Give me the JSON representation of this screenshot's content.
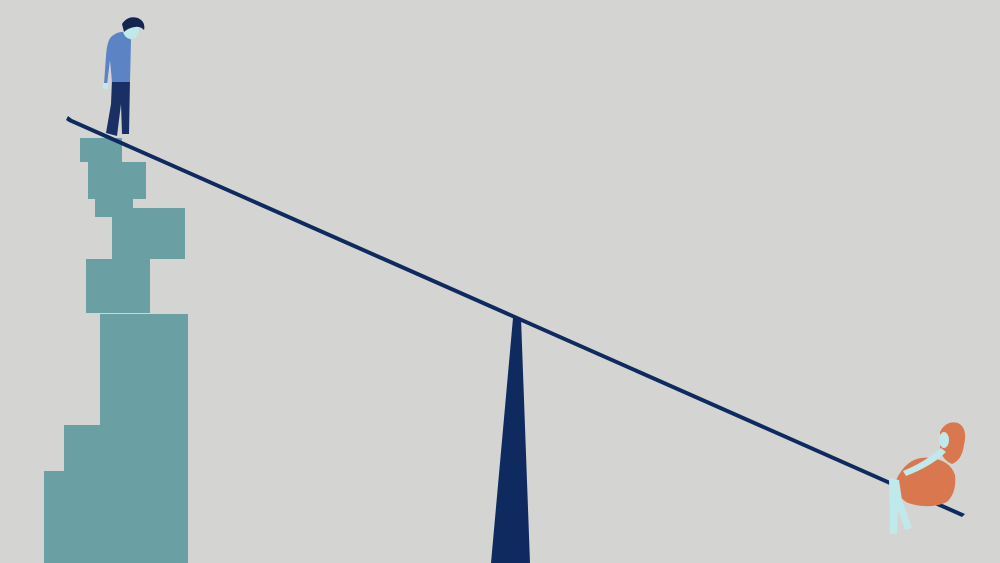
{
  "scene": {
    "colors": {
      "background": "#d4d5d3",
      "blocks": "#6aa0a4",
      "beam": "#0f2a5e",
      "fulcrum": "#0f2a5e",
      "man_sweater": "#5c83c4",
      "man_trousers": "#1a2f63",
      "man_hair": "#142550",
      "man_skin": "#bfe9ea",
      "woman_dress": "#d9774f",
      "woman_hair": "#d9774f",
      "woman_skin": "#bfe9ea"
    },
    "icons": [
      "person-standing-icon",
      "person-sitting-icon",
      "seesaw-icon",
      "stacked-blocks-icon"
    ]
  }
}
